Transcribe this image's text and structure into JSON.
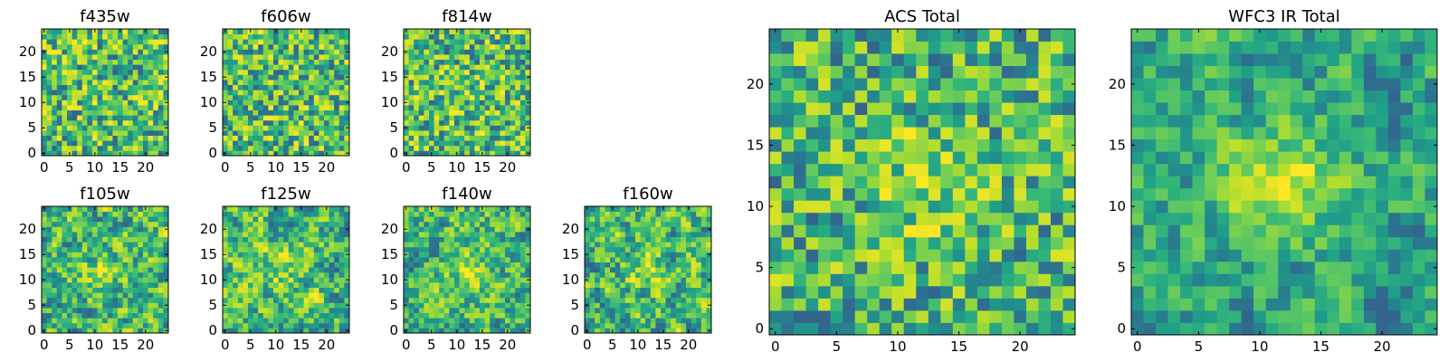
{
  "chart_data": {
    "type": "heatmap",
    "colormap": "viridis",
    "panels": [
      {
        "name": "f435w",
        "title": "f435w",
        "grid": 25,
        "seed": 11,
        "smooth": 0,
        "peak": 0.0,
        "xticks": [
          "0",
          "5",
          "10",
          "15",
          "20"
        ],
        "yticks": [
          "0",
          "5",
          "10",
          "15",
          "20"
        ],
        "xtick_values": [
          0,
          5,
          10,
          15,
          20
        ],
        "ytick_values": [
          0,
          5,
          10,
          15,
          20
        ]
      },
      {
        "name": "f606w",
        "title": "f606w",
        "grid": 25,
        "seed": 23,
        "smooth": 0,
        "peak": 0.0,
        "xticks": [
          "0",
          "5",
          "10",
          "15",
          "20"
        ],
        "yticks": [
          "0",
          "5",
          "10",
          "15",
          "20"
        ],
        "xtick_values": [
          0,
          5,
          10,
          15,
          20
        ],
        "ytick_values": [
          0,
          5,
          10,
          15,
          20
        ]
      },
      {
        "name": "f814w",
        "title": "f814w",
        "grid": 25,
        "seed": 37,
        "smooth": 0,
        "peak": 0.05,
        "xticks": [
          "0",
          "5",
          "10",
          "15",
          "20"
        ],
        "yticks": [
          "0",
          "5",
          "10",
          "15",
          "20"
        ],
        "xtick_values": [
          0,
          5,
          10,
          15,
          20
        ],
        "ytick_values": [
          0,
          5,
          10,
          15,
          20
        ]
      },
      {
        "name": "f105w",
        "title": "f105w",
        "grid": 25,
        "seed": 41,
        "smooth": 1,
        "peak": 0.2,
        "xticks": [
          "0",
          "5",
          "10",
          "15",
          "20"
        ],
        "yticks": [
          "0",
          "5",
          "10",
          "15",
          "20"
        ],
        "xtick_values": [
          0,
          5,
          10,
          15,
          20
        ],
        "ytick_values": [
          0,
          5,
          10,
          15,
          20
        ]
      },
      {
        "name": "f125w",
        "title": "f125w",
        "grid": 25,
        "seed": 53,
        "smooth": 1,
        "peak": 0.1,
        "xticks": [
          "0",
          "5",
          "10",
          "15",
          "20"
        ],
        "yticks": [
          "0",
          "5",
          "10",
          "15",
          "20"
        ],
        "xtick_values": [
          0,
          5,
          10,
          15,
          20
        ],
        "ytick_values": [
          0,
          5,
          10,
          15,
          20
        ]
      },
      {
        "name": "f140w",
        "title": "f140w",
        "grid": 25,
        "seed": 67,
        "smooth": 1,
        "peak": 0.2,
        "xticks": [
          "0",
          "5",
          "10",
          "15",
          "20"
        ],
        "yticks": [
          "0",
          "5",
          "10",
          "15",
          "20"
        ],
        "xtick_values": [
          0,
          5,
          10,
          15,
          20
        ],
        "ytick_values": [
          0,
          5,
          10,
          15,
          20
        ]
      },
      {
        "name": "f160w",
        "title": "f160w",
        "grid": 25,
        "seed": 79,
        "smooth": 1,
        "peak": 0.2,
        "xticks": [
          "0",
          "5",
          "10",
          "15",
          "20"
        ],
        "yticks": [
          "0",
          "5",
          "10",
          "15",
          "20"
        ],
        "xtick_values": [
          0,
          5,
          10,
          15,
          20
        ],
        "ytick_values": [
          0,
          5,
          10,
          15,
          20
        ]
      },
      {
        "name": "acs-total",
        "title": "ACS Total",
        "grid": 25,
        "seed": 97,
        "smooth": 0,
        "peak": 0.25,
        "xticks": [
          "0",
          "5",
          "10",
          "15",
          "20"
        ],
        "yticks": [
          "0",
          "5",
          "10",
          "15",
          "20"
        ],
        "xtick_values": [
          0,
          5,
          10,
          15,
          20
        ],
        "ytick_values": [
          0,
          5,
          10,
          15,
          20
        ]
      },
      {
        "name": "wfc3-ir-total",
        "title": "WFC3 IR Total",
        "grid": 25,
        "seed": 131,
        "smooth": 1,
        "peak": 0.55,
        "xticks": [
          "0",
          "5",
          "10",
          "15",
          "20"
        ],
        "yticks": [
          "0",
          "5",
          "10",
          "15",
          "20"
        ],
        "xtick_values": [
          0,
          5,
          10,
          15,
          20
        ],
        "ytick_values": [
          0,
          5,
          10,
          15,
          20
        ]
      }
    ]
  }
}
